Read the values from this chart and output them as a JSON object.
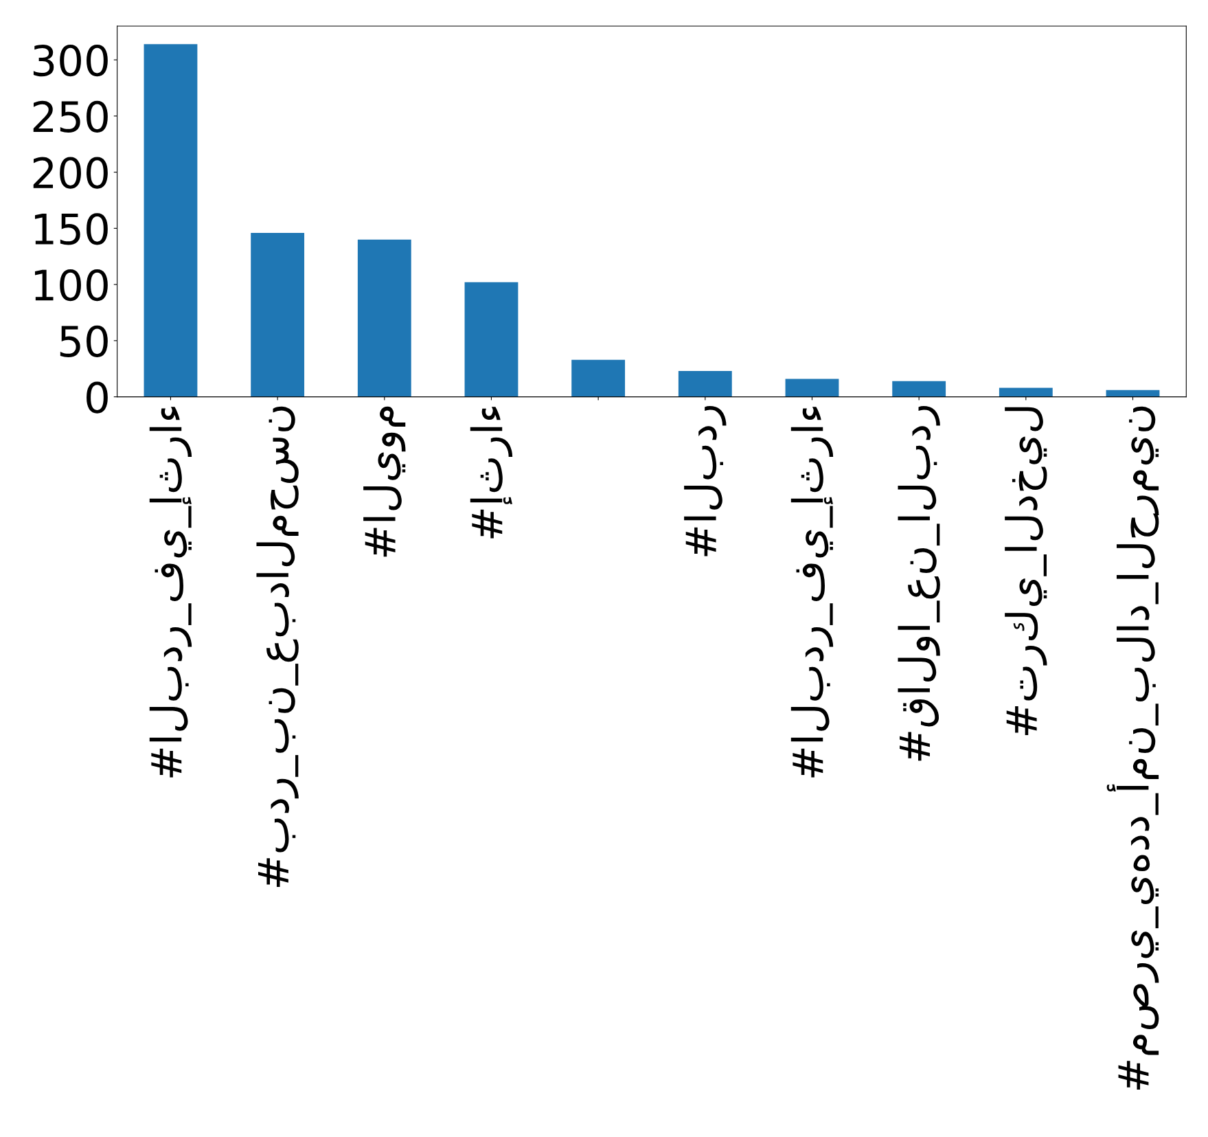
{
  "chart_data": {
    "type": "bar",
    "categories": [
      "#البدر_في_إثراء",
      "#بدر_بن_عبدالمحسن",
      "#اليوم",
      "#إثراء",
      null,
      "#البدر",
      "#البدر_في_إثراء",
      "#قالوا_عن_البدر",
      "#تركي_الدخيل",
      "#مصري_يهدد_أمن_بلاد_الحرمين"
    ],
    "values": [
      314,
      146,
      140,
      102,
      33,
      23,
      16,
      14,
      8,
      6
    ],
    "color": "#1f77b4",
    "ylim": [
      0,
      330
    ],
    "yticks": [
      0,
      50,
      100,
      150,
      200,
      250,
      300
    ],
    "grid": false
  }
}
